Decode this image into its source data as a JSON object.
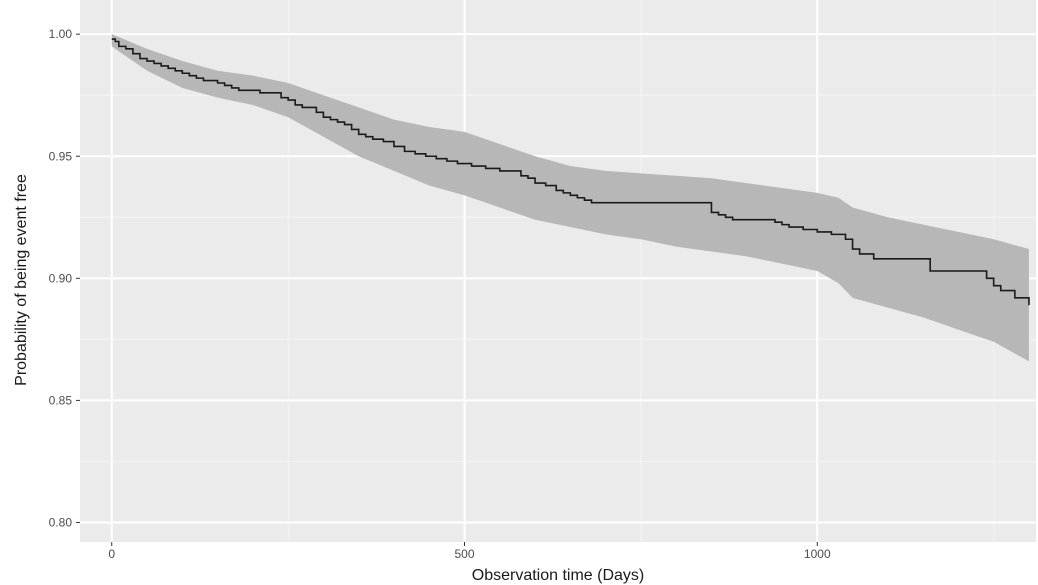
{
  "chart_data": {
    "type": "line",
    "xlabel": "Observation time (Days)",
    "ylabel": "Probability of being event free",
    "xlim": [
      -45,
      1310
    ],
    "ylim": [
      0.792,
      1.014
    ],
    "x_ticks": [
      0,
      500,
      1000
    ],
    "x_tick_labels": [
      "0",
      "500",
      "1000"
    ],
    "y_ticks": [
      0.8,
      0.85,
      0.9,
      0.95,
      1.0
    ],
    "y_tick_labels": [
      "0.80",
      "0.85",
      "0.90",
      "0.95",
      "1.00"
    ],
    "grid": true,
    "series": [
      {
        "step": true,
        "color": "#1a1a1a",
        "x": [
          0,
          5,
          10,
          20,
          30,
          40,
          50,
          60,
          70,
          80,
          90,
          100,
          110,
          120,
          130,
          140,
          150,
          160,
          170,
          180,
          195,
          210,
          225,
          240,
          250,
          260,
          270,
          280,
          290,
          300,
          310,
          320,
          330,
          340,
          350,
          360,
          370,
          385,
          400,
          415,
          430,
          445,
          460,
          475,
          490,
          510,
          530,
          550,
          570,
          580,
          590,
          600,
          615,
          630,
          640,
          650,
          660,
          670,
          680,
          700,
          720,
          740,
          760,
          780,
          800,
          820,
          840,
          850,
          860,
          870,
          880,
          900,
          920,
          940,
          950,
          960,
          980,
          1000,
          1020,
          1040,
          1050,
          1060,
          1080,
          1100,
          1130,
          1160,
          1190,
          1210,
          1230,
          1240,
          1250,
          1260,
          1280,
          1300
        ],
        "y": [
          0.998,
          0.997,
          0.995,
          0.994,
          0.992,
          0.99,
          0.989,
          0.988,
          0.987,
          0.986,
          0.985,
          0.984,
          0.983,
          0.982,
          0.981,
          0.981,
          0.98,
          0.979,
          0.978,
          0.977,
          0.977,
          0.976,
          0.976,
          0.974,
          0.973,
          0.971,
          0.97,
          0.97,
          0.968,
          0.966,
          0.965,
          0.964,
          0.963,
          0.961,
          0.959,
          0.958,
          0.957,
          0.956,
          0.954,
          0.952,
          0.951,
          0.95,
          0.949,
          0.948,
          0.947,
          0.946,
          0.945,
          0.944,
          0.944,
          0.942,
          0.941,
          0.939,
          0.938,
          0.936,
          0.935,
          0.934,
          0.933,
          0.932,
          0.931,
          0.931,
          0.931,
          0.931,
          0.931,
          0.931,
          0.931,
          0.931,
          0.931,
          0.927,
          0.926,
          0.925,
          0.924,
          0.924,
          0.924,
          0.923,
          0.922,
          0.921,
          0.92,
          0.919,
          0.918,
          0.916,
          0.912,
          0.91,
          0.908,
          0.908,
          0.908,
          0.903,
          0.903,
          0.903,
          0.903,
          0.9,
          0.897,
          0.895,
          0.892,
          0.889
        ]
      }
    ],
    "confidence_band": {
      "color": "#b7b7b7",
      "x": [
        0,
        50,
        100,
        150,
        200,
        250,
        300,
        350,
        400,
        450,
        500,
        550,
        600,
        650,
        700,
        750,
        800,
        850,
        900,
        950,
        1000,
        1030,
        1050,
        1100,
        1150,
        1200,
        1250,
        1300
      ],
      "lower": [
        0.995,
        0.985,
        0.978,
        0.974,
        0.971,
        0.966,
        0.958,
        0.95,
        0.944,
        0.938,
        0.934,
        0.929,
        0.924,
        0.921,
        0.918,
        0.916,
        0.913,
        0.911,
        0.909,
        0.906,
        0.903,
        0.898,
        0.892,
        0.888,
        0.884,
        0.879,
        0.874,
        0.866
      ],
      "upper": [
        1.0,
        0.994,
        0.989,
        0.985,
        0.983,
        0.98,
        0.975,
        0.97,
        0.965,
        0.962,
        0.96,
        0.955,
        0.95,
        0.946,
        0.944,
        0.943,
        0.942,
        0.941,
        0.939,
        0.937,
        0.935,
        0.933,
        0.929,
        0.925,
        0.922,
        0.919,
        0.916,
        0.912
      ]
    }
  }
}
